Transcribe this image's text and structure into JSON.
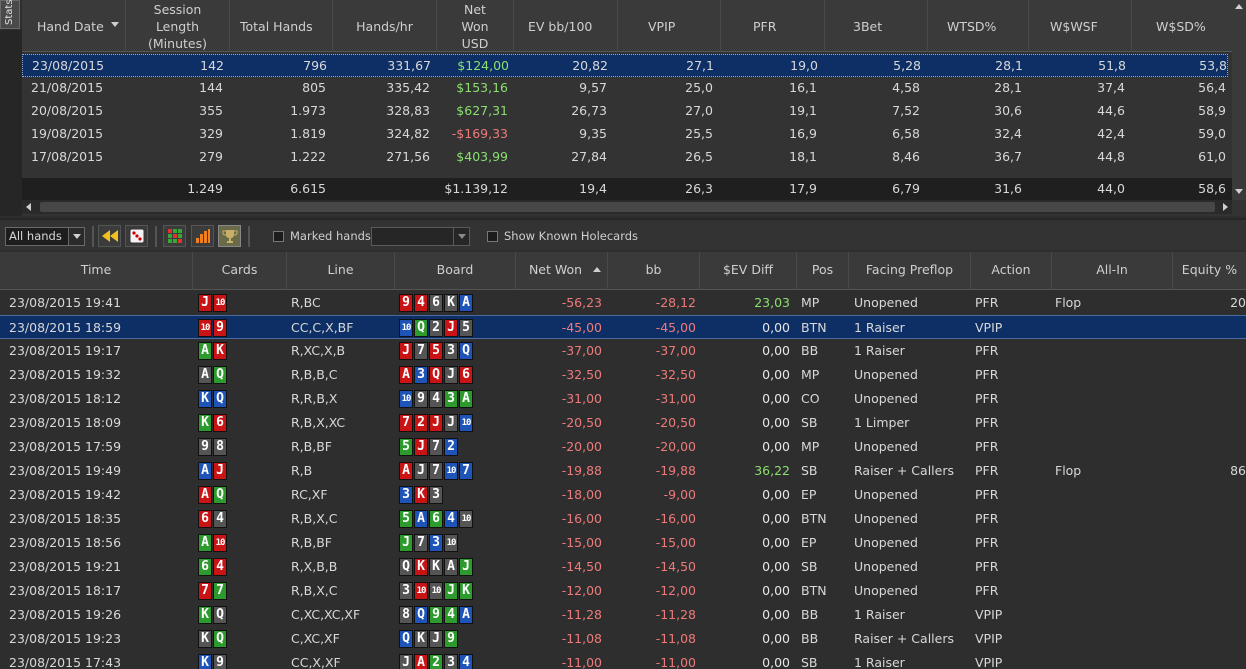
{
  "side_tab": "Stats",
  "stats": {
    "columns": [
      "Hand Date",
      "Session Length (Minutes)",
      "Total Hands",
      "Hands/hr",
      "Net Won USD",
      "EV bb/100",
      "VPIP",
      "PFR",
      "3Bet",
      "WTSD%",
      "W$WSF",
      "W$SD%"
    ],
    "header_lines": {
      "session_length": [
        "Session",
        "Length",
        "(Minutes)"
      ],
      "net_won": [
        "Net",
        "Won",
        "USD"
      ]
    },
    "rows": [
      {
        "date": "23/08/2015",
        "len": "142",
        "hands": "796",
        "hr": "331,67",
        "net": "$124,00",
        "ev": "20,82",
        "vpip": "27,1",
        "pfr": "19,0",
        "three_bet": "5,28",
        "wtsd": "28,1",
        "wwsf": "51,8",
        "wsd": "53,8"
      },
      {
        "date": "21/08/2015",
        "len": "144",
        "hands": "805",
        "hr": "335,42",
        "net": "$153,16",
        "ev": "9,57",
        "vpip": "25,0",
        "pfr": "16,1",
        "three_bet": "4,58",
        "wtsd": "28,1",
        "wwsf": "37,4",
        "wsd": "56,4"
      },
      {
        "date": "20/08/2015",
        "len": "355",
        "hands": "1.973",
        "hr": "328,83",
        "net": "$627,31",
        "ev": "26,73",
        "vpip": "27,0",
        "pfr": "19,1",
        "three_bet": "7,52",
        "wtsd": "30,6",
        "wwsf": "44,6",
        "wsd": "58,9"
      },
      {
        "date": "19/08/2015",
        "len": "329",
        "hands": "1.819",
        "hr": "324,82",
        "net": "-$169,33",
        "ev": "9,35",
        "vpip": "25,5",
        "pfr": "16,9",
        "three_bet": "6,58",
        "wtsd": "32,4",
        "wwsf": "42,4",
        "wsd": "59,0"
      },
      {
        "date": "17/08/2015",
        "len": "279",
        "hands": "1.222",
        "hr": "271,56",
        "net": "$403,99",
        "ev": "27,84",
        "vpip": "26,5",
        "pfr": "18,1",
        "three_bet": "8,46",
        "wtsd": "36,7",
        "wwsf": "44,8",
        "wsd": "61,0"
      }
    ],
    "totals": {
      "len": "1.249",
      "hands": "6.615",
      "net": "$1.139,12",
      "ev": "19,4",
      "vpip": "26,3",
      "pfr": "17,9",
      "three_bet": "6,79",
      "wtsd": "31,6",
      "wwsf": "44,0",
      "wsd": "58,6"
    }
  },
  "toolbar": {
    "filter_value": "All hands",
    "marked_hands_label": "Marked hands",
    "show_known_holecards_label": "Show Known Holecards"
  },
  "hands": {
    "columns": [
      "Time",
      "Cards",
      "Line",
      "Board",
      "Net Won",
      "bb",
      "$EV Diff",
      "Pos",
      "Facing Preflop",
      "Action",
      "All-In",
      "Equity %"
    ],
    "rows": [
      {
        "time": "23/08/2015 19:41",
        "cards": [
          [
            "J",
            "h"
          ],
          [
            "10",
            "h"
          ]
        ],
        "line": "R,BC",
        "board": [
          [
            "9",
            "h"
          ],
          [
            "4",
            "h"
          ],
          [
            "6",
            "s"
          ],
          [
            "K",
            "s"
          ],
          [
            "A",
            "d"
          ]
        ],
        "net": "-56,23",
        "bb": "-28,12",
        "ev": "23,03",
        "pos": "MP",
        "facing": "Unopened",
        "action": "PFR",
        "allin": "Flop",
        "equity": "20"
      },
      {
        "time": "23/08/2015 18:59",
        "cards": [
          [
            "10",
            "h"
          ],
          [
            "9",
            "h"
          ]
        ],
        "line": "CC,C,X,BF",
        "board": [
          [
            "10",
            "d"
          ],
          [
            "Q",
            "c"
          ],
          [
            "2",
            "s"
          ],
          [
            "J",
            "h"
          ],
          [
            "5",
            "s"
          ]
        ],
        "net": "-45,00",
        "bb": "-45,00",
        "ev": "0,00",
        "pos": "BTN",
        "facing": "1 Raiser",
        "action": "VPIP",
        "allin": "",
        "equity": ""
      },
      {
        "time": "23/08/2015 19:17",
        "cards": [
          [
            "A",
            "c"
          ],
          [
            "K",
            "h"
          ]
        ],
        "line": "R,XC,X,B",
        "board": [
          [
            "J",
            "h"
          ],
          [
            "7",
            "s"
          ],
          [
            "5",
            "h"
          ],
          [
            "3",
            "s"
          ],
          [
            "Q",
            "d"
          ]
        ],
        "net": "-37,00",
        "bb": "-37,00",
        "ev": "0,00",
        "pos": "BB",
        "facing": "1 Raiser",
        "action": "PFR",
        "allin": "",
        "equity": ""
      },
      {
        "time": "23/08/2015 19:32",
        "cards": [
          [
            "A",
            "s"
          ],
          [
            "Q",
            "c"
          ]
        ],
        "line": "R,B,B,C",
        "board": [
          [
            "A",
            "h"
          ],
          [
            "3",
            "d"
          ],
          [
            "Q",
            "h"
          ],
          [
            "J",
            "s"
          ],
          [
            "6",
            "h"
          ]
        ],
        "net": "-32,50",
        "bb": "-32,50",
        "ev": "0,00",
        "pos": "MP",
        "facing": "Unopened",
        "action": "PFR",
        "allin": "",
        "equity": ""
      },
      {
        "time": "23/08/2015 18:12",
        "cards": [
          [
            "K",
            "d"
          ],
          [
            "Q",
            "d"
          ]
        ],
        "line": "R,R,B,X",
        "board": [
          [
            "10",
            "d"
          ],
          [
            "9",
            "s"
          ],
          [
            "4",
            "s"
          ],
          [
            "3",
            "c"
          ],
          [
            "A",
            "c"
          ]
        ],
        "net": "-31,00",
        "bb": "-31,00",
        "ev": "0,00",
        "pos": "CO",
        "facing": "Unopened",
        "action": "PFR",
        "allin": "",
        "equity": ""
      },
      {
        "time": "23/08/2015 18:09",
        "cards": [
          [
            "K",
            "c"
          ],
          [
            "6",
            "h"
          ]
        ],
        "line": "R,B,X,XC",
        "board": [
          [
            "7",
            "h"
          ],
          [
            "2",
            "h"
          ],
          [
            "J",
            "h"
          ],
          [
            "J",
            "s"
          ],
          [
            "10",
            "d"
          ]
        ],
        "net": "-20,50",
        "bb": "-20,50",
        "ev": "0,00",
        "pos": "SB",
        "facing": "1 Limper",
        "action": "PFR",
        "allin": "",
        "equity": ""
      },
      {
        "time": "23/08/2015 17:59",
        "cards": [
          [
            "9",
            "s"
          ],
          [
            "8",
            "s"
          ]
        ],
        "line": "R,B,BF",
        "board": [
          [
            "5",
            "c"
          ],
          [
            "J",
            "h"
          ],
          [
            "7",
            "s"
          ],
          [
            "2",
            "d"
          ]
        ],
        "net": "-20,00",
        "bb": "-20,00",
        "ev": "0,00",
        "pos": "MP",
        "facing": "Unopened",
        "action": "PFR",
        "allin": "",
        "equity": ""
      },
      {
        "time": "23/08/2015 19:49",
        "cards": [
          [
            "A",
            "d"
          ],
          [
            "J",
            "h"
          ]
        ],
        "line": "R,B",
        "board": [
          [
            "A",
            "h"
          ],
          [
            "J",
            "s"
          ],
          [
            "7",
            "s"
          ],
          [
            "10",
            "d"
          ],
          [
            "7",
            "d"
          ]
        ],
        "net": "-19,88",
        "bb": "-19,88",
        "ev": "36,22",
        "pos": "SB",
        "facing": "Raiser + Callers",
        "action": "PFR",
        "allin": "Flop",
        "equity": "86"
      },
      {
        "time": "23/08/2015 19:42",
        "cards": [
          [
            "A",
            "h"
          ],
          [
            "Q",
            "c"
          ]
        ],
        "line": "RC,XF",
        "board": [
          [
            "3",
            "d"
          ],
          [
            "K",
            "h"
          ],
          [
            "3",
            "s"
          ]
        ],
        "net": "-18,00",
        "bb": "-9,00",
        "ev": "0,00",
        "pos": "EP",
        "facing": "Unopened",
        "action": "PFR",
        "allin": "",
        "equity": ""
      },
      {
        "time": "23/08/2015 18:35",
        "cards": [
          [
            "6",
            "h"
          ],
          [
            "4",
            "s"
          ]
        ],
        "line": "R,B,X,C",
        "board": [
          [
            "5",
            "c"
          ],
          [
            "A",
            "d"
          ],
          [
            "6",
            "c"
          ],
          [
            "4",
            "d"
          ],
          [
            "10",
            "s"
          ]
        ],
        "net": "-16,00",
        "bb": "-16,00",
        "ev": "0,00",
        "pos": "BTN",
        "facing": "Unopened",
        "action": "PFR",
        "allin": "",
        "equity": ""
      },
      {
        "time": "23/08/2015 18:56",
        "cards": [
          [
            "A",
            "c"
          ],
          [
            "10",
            "h"
          ]
        ],
        "line": "R,B,BF",
        "board": [
          [
            "J",
            "c"
          ],
          [
            "7",
            "s"
          ],
          [
            "3",
            "d"
          ],
          [
            "10",
            "s"
          ]
        ],
        "net": "-15,00",
        "bb": "-15,00",
        "ev": "0,00",
        "pos": "EP",
        "facing": "Unopened",
        "action": "PFR",
        "allin": "",
        "equity": ""
      },
      {
        "time": "23/08/2015 19:21",
        "cards": [
          [
            "6",
            "c"
          ],
          [
            "4",
            "h"
          ]
        ],
        "line": "R,X,B,B",
        "board": [
          [
            "Q",
            "s"
          ],
          [
            "K",
            "h"
          ],
          [
            "K",
            "s"
          ],
          [
            "A",
            "s"
          ],
          [
            "J",
            "c"
          ]
        ],
        "net": "-14,50",
        "bb": "-14,50",
        "ev": "0,00",
        "pos": "SB",
        "facing": "Unopened",
        "action": "PFR",
        "allin": "",
        "equity": ""
      },
      {
        "time": "23/08/2015 18:17",
        "cards": [
          [
            "7",
            "h"
          ],
          [
            "7",
            "c"
          ]
        ],
        "line": "R,B,X,C",
        "board": [
          [
            "3",
            "s"
          ],
          [
            "10",
            "h"
          ],
          [
            "10",
            "s"
          ],
          [
            "J",
            "c"
          ],
          [
            "K",
            "c"
          ]
        ],
        "net": "-12,00",
        "bb": "-12,00",
        "ev": "0,00",
        "pos": "BTN",
        "facing": "Unopened",
        "action": "PFR",
        "allin": "",
        "equity": ""
      },
      {
        "time": "23/08/2015 19:26",
        "cards": [
          [
            "K",
            "c"
          ],
          [
            "Q",
            "s"
          ]
        ],
        "line": "C,XC,XC,XF",
        "board": [
          [
            "8",
            "s"
          ],
          [
            "Q",
            "d"
          ],
          [
            "9",
            "c"
          ],
          [
            "4",
            "c"
          ],
          [
            "A",
            "d"
          ]
        ],
        "net": "-11,28",
        "bb": "-11,28",
        "ev": "0,00",
        "pos": "BB",
        "facing": "1 Raiser",
        "action": "VPIP",
        "allin": "",
        "equity": ""
      },
      {
        "time": "23/08/2015 19:23",
        "cards": [
          [
            "K",
            "s"
          ],
          [
            "Q",
            "c"
          ]
        ],
        "line": "C,XC,XF",
        "board": [
          [
            "Q",
            "d"
          ],
          [
            "K",
            "s"
          ],
          [
            "J",
            "s"
          ],
          [
            "9",
            "c"
          ]
        ],
        "net": "-11,08",
        "bb": "-11,08",
        "ev": "0,00",
        "pos": "BB",
        "facing": "Raiser + Callers",
        "action": "VPIP",
        "allin": "",
        "equity": ""
      },
      {
        "time": "23/08/2015 17:43",
        "cards": [
          [
            "K",
            "d"
          ],
          [
            "9",
            "s"
          ]
        ],
        "line": "CC,X,XF",
        "board": [
          [
            "J",
            "s"
          ],
          [
            "A",
            "h"
          ],
          [
            "2",
            "c"
          ],
          [
            "3",
            "s"
          ],
          [
            "4",
            "d"
          ]
        ],
        "net": "-11,00",
        "bb": "-11,00",
        "ev": "0,00",
        "pos": "SB",
        "facing": "1 Raiser",
        "action": "VPIP",
        "allin": "",
        "equity": ""
      }
    ]
  },
  "colors": {
    "selection": "#0d2f66",
    "positive": "#8adf6f",
    "negative": "#ee7a7a",
    "hearts": "#c81414",
    "diamonds": "#1e54b8",
    "clubs": "#2c9a2c",
    "spades": "#555555"
  }
}
